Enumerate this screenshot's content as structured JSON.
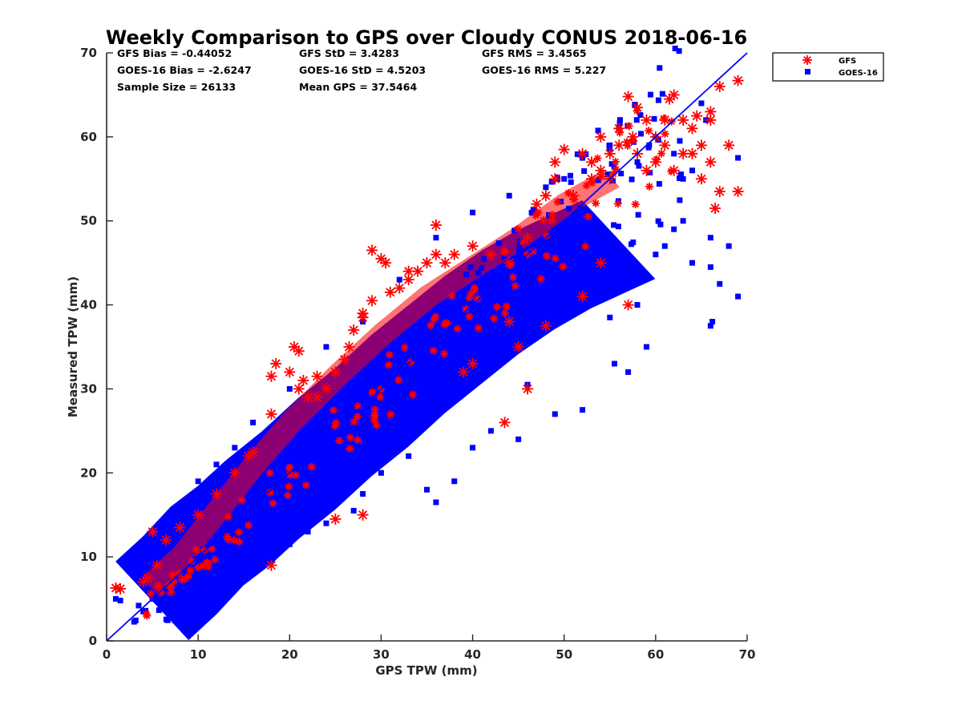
{
  "chart_data": {
    "type": "scatter",
    "title": "Weekly Comparison to GPS over Cloudy CONUS 2018-06-16",
    "xlabel": "GPS TPW (mm)",
    "ylabel": "Measured TPW (mm)",
    "xlim": [
      0,
      70
    ],
    "ylim": [
      0,
      70
    ],
    "xticks": [
      "0",
      "10",
      "20",
      "30",
      "40",
      "50",
      "60",
      "70"
    ],
    "yticks": [
      "0",
      "10",
      "20",
      "30",
      "40",
      "50",
      "60",
      "70"
    ],
    "grid": false,
    "legend_position": "outside-top-right",
    "one_to_one_line": {
      "x": [
        0,
        70
      ],
      "y": [
        0,
        70
      ],
      "color": "#0000ff"
    },
    "stats": [
      [
        "GFS Bias = -0.44052",
        "GFS StD = 3.4283",
        "GFS RMS = 3.4565"
      ],
      [
        "GOES-16 Bias = -2.6247",
        "GOES-16 StD = 4.5203",
        "GOES-16 RMS = 5.227"
      ],
      [
        "Sample Size = 26133",
        "Mean GPS = 37.5464",
        ""
      ]
    ],
    "series": [
      {
        "name": "GFS",
        "marker": "asterisk",
        "color": "#ff0000",
        "points": [
          [
            1,
            6.3
          ],
          [
            1.5,
            6.2
          ],
          [
            4,
            7
          ],
          [
            4.5,
            7.5
          ],
          [
            5,
            13
          ],
          [
            5.5,
            9
          ],
          [
            6.5,
            12
          ],
          [
            8,
            13.5
          ],
          [
            10,
            15
          ],
          [
            12,
            17.5
          ],
          [
            14,
            20
          ],
          [
            15.5,
            22
          ],
          [
            16,
            22.5
          ],
          [
            18,
            27
          ],
          [
            18,
            31.5
          ],
          [
            18.5,
            33
          ],
          [
            20,
            32
          ],
          [
            20.5,
            35
          ],
          [
            21,
            34.5
          ],
          [
            21,
            30
          ],
          [
            21.5,
            31
          ],
          [
            22,
            29
          ],
          [
            23,
            31.5
          ],
          [
            23,
            29
          ],
          [
            24,
            30
          ],
          [
            25,
            32
          ],
          [
            26,
            33.5
          ],
          [
            26.5,
            35
          ],
          [
            27,
            37
          ],
          [
            28,
            39
          ],
          [
            28,
            38.5
          ],
          [
            29,
            40.5
          ],
          [
            29,
            46.5
          ],
          [
            30,
            45.5
          ],
          [
            30.5,
            45
          ],
          [
            31,
            41.5
          ],
          [
            32,
            42
          ],
          [
            33,
            44
          ],
          [
            33,
            43
          ],
          [
            34,
            44
          ],
          [
            35,
            45
          ],
          [
            36,
            49.5
          ],
          [
            36,
            46
          ],
          [
            37,
            45
          ],
          [
            38,
            46
          ],
          [
            40,
            47
          ],
          [
            42,
            46
          ],
          [
            44,
            45
          ],
          [
            46,
            48
          ],
          [
            47,
            52
          ],
          [
            48,
            53
          ],
          [
            49,
            55
          ],
          [
            49,
            57
          ],
          [
            50,
            58.5
          ],
          [
            51,
            53
          ],
          [
            52,
            58
          ],
          [
            53,
            55
          ],
          [
            53,
            57
          ],
          [
            54,
            60
          ],
          [
            54,
            56
          ],
          [
            55,
            55
          ],
          [
            55,
            58
          ],
          [
            56,
            59
          ],
          [
            56,
            61
          ],
          [
            57,
            64.8
          ],
          [
            57.5,
            60
          ],
          [
            58,
            63.5
          ],
          [
            58,
            58
          ],
          [
            59,
            62
          ],
          [
            59,
            56
          ],
          [
            60,
            60
          ],
          [
            60,
            57
          ],
          [
            61,
            59
          ],
          [
            61,
            62
          ],
          [
            61.5,
            64.5
          ],
          [
            62,
            65
          ],
          [
            62,
            56
          ],
          [
            63,
            58
          ],
          [
            63,
            62
          ],
          [
            64,
            58
          ],
          [
            64,
            61
          ],
          [
            64.5,
            62.5
          ],
          [
            65,
            55
          ],
          [
            65,
            59
          ],
          [
            66,
            57
          ],
          [
            66,
            62
          ],
          [
            66,
            63
          ],
          [
            66.5,
            51.5
          ],
          [
            67,
            53.5
          ],
          [
            67,
            66
          ],
          [
            68,
            59
          ],
          [
            69,
            66.7
          ],
          [
            69,
            53.5
          ],
          [
            43.5,
            26
          ],
          [
            28,
            15
          ],
          [
            18,
            9
          ],
          [
            25,
            14.5
          ],
          [
            40,
            33
          ],
          [
            45,
            35
          ],
          [
            48,
            37.5
          ],
          [
            52,
            41
          ],
          [
            57,
            40
          ],
          [
            46,
            30
          ],
          [
            54,
            45
          ],
          [
            44,
            38
          ],
          [
            39,
            32
          ]
        ],
        "cloud": [
          [
            4.5,
            6.5
          ],
          [
            8,
            10
          ],
          [
            12,
            15.5
          ],
          [
            16,
            21
          ],
          [
            20,
            26
          ],
          [
            25,
            31.5
          ],
          [
            30,
            36.5
          ],
          [
            35,
            41
          ],
          [
            40,
            44.5
          ],
          [
            45,
            48
          ],
          [
            50,
            52
          ],
          [
            55,
            55
          ]
        ]
      },
      {
        "name": "GOES-16",
        "marker": "square",
        "color": "#0000ff",
        "points": [
          [
            1,
            5
          ],
          [
            1.5,
            4.8
          ],
          [
            4,
            3.5
          ],
          [
            3.5,
            4.2
          ],
          [
            5,
            5
          ],
          [
            6,
            14
          ],
          [
            8,
            16
          ],
          [
            10,
            19
          ],
          [
            12,
            21
          ],
          [
            14,
            23
          ],
          [
            16,
            26
          ],
          [
            20,
            30
          ],
          [
            24,
            35
          ],
          [
            28,
            38
          ],
          [
            32,
            43
          ],
          [
            36,
            48
          ],
          [
            40,
            51
          ],
          [
            44,
            53
          ],
          [
            48,
            54
          ],
          [
            50,
            55
          ],
          [
            52,
            57.5
          ],
          [
            55,
            59
          ],
          [
            58,
            57
          ],
          [
            60,
            60
          ],
          [
            62,
            58
          ],
          [
            63,
            55
          ],
          [
            64,
            56
          ],
          [
            65,
            64
          ],
          [
            65.5,
            62
          ],
          [
            66,
            48
          ],
          [
            66,
            44.5
          ],
          [
            66,
            37.5
          ],
          [
            66.2,
            38
          ],
          [
            67,
            42.5
          ],
          [
            68,
            47
          ],
          [
            69,
            41
          ],
          [
            69,
            57.5
          ],
          [
            60,
            46
          ],
          [
            58,
            40
          ],
          [
            55,
            38.5
          ],
          [
            55.5,
            33
          ],
          [
            52,
            27.5
          ],
          [
            49,
            27
          ],
          [
            45,
            24
          ],
          [
            42,
            25
          ],
          [
            40,
            23
          ],
          [
            38,
            19
          ],
          [
            35,
            18
          ],
          [
            33,
            22
          ],
          [
            30,
            20
          ],
          [
            28,
            17.5
          ],
          [
            27,
            15.5
          ],
          [
            24,
            14
          ],
          [
            22,
            13
          ],
          [
            20,
            11.5
          ],
          [
            18,
            10
          ],
          [
            16,
            8.5
          ],
          [
            13,
            7
          ],
          [
            10,
            5
          ],
          [
            8,
            4.5
          ],
          [
            6,
            4.5
          ],
          [
            57,
            32
          ],
          [
            59,
            35
          ],
          [
            61,
            47
          ],
          [
            62,
            49
          ],
          [
            63,
            50
          ],
          [
            64,
            45
          ],
          [
            46,
            30.5
          ],
          [
            36,
            16.5
          ]
        ],
        "cloud": [
          [
            4,
            4.5
          ],
          [
            7,
            7.5
          ],
          [
            10,
            11
          ],
          [
            13,
            13.5
          ],
          [
            16,
            16.5
          ],
          [
            20,
            20
          ],
          [
            24,
            24
          ],
          [
            28,
            27.5
          ],
          [
            32,
            31.5
          ],
          [
            36,
            35
          ],
          [
            40,
            38.5
          ],
          [
            44,
            41.5
          ],
          [
            48,
            44
          ],
          [
            52,
            46
          ],
          [
            55,
            47.5
          ]
        ]
      }
    ]
  }
}
